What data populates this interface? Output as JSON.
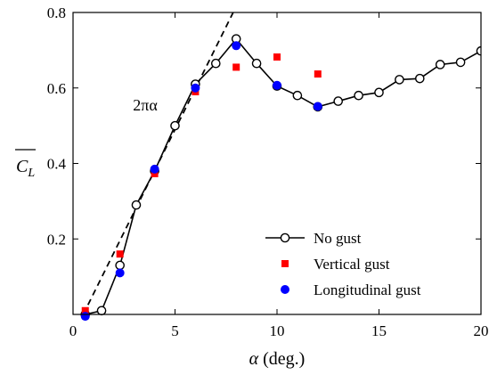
{
  "chart_data": {
    "type": "scatter",
    "xlabel": "α (deg.)",
    "ylabel": "C_L",
    "xlim": [
      0,
      20
    ],
    "ylim": [
      0,
      0.8
    ],
    "xticks": [
      0,
      5,
      10,
      15,
      20
    ],
    "yticks": [
      0.2,
      0.4,
      0.6,
      0.8
    ],
    "xtick_labels": [
      "0",
      "5",
      "10",
      "15",
      "20"
    ],
    "ytick_labels": [
      "0.2",
      "0.4",
      "0.6",
      "0.8"
    ],
    "grid": false,
    "legend_position": "lower-right",
    "annotation": {
      "text": "2πα",
      "x": 3.9,
      "y": 0.555
    },
    "series": [
      {
        "name": "No gust",
        "style": "line-open-circle",
        "color": "#000000",
        "points": [
          [
            0.6,
            0.0
          ],
          [
            1.4,
            0.01
          ],
          [
            2.3,
            0.13
          ],
          [
            3.1,
            0.29
          ],
          [
            4.0,
            0.38
          ],
          [
            5.0,
            0.5
          ],
          [
            6.0,
            0.61
          ],
          [
            7.0,
            0.665
          ],
          [
            8.0,
            0.73
          ],
          [
            9.0,
            0.665
          ],
          [
            10.0,
            0.605
          ],
          [
            11.0,
            0.58
          ],
          [
            12.0,
            0.55
          ],
          [
            13.0,
            0.565
          ],
          [
            14.0,
            0.58
          ],
          [
            15.0,
            0.588
          ],
          [
            16.0,
            0.622
          ],
          [
            17.0,
            0.625
          ],
          [
            18.0,
            0.662
          ],
          [
            19.0,
            0.668
          ],
          [
            20.0,
            0.698
          ]
        ]
      },
      {
        "name": "Vertical gust",
        "style": "filled-square",
        "color": "#ff0000",
        "points": [
          [
            0.6,
            0.01
          ],
          [
            2.3,
            0.16
          ],
          [
            4.0,
            0.373
          ],
          [
            6.0,
            0.59
          ],
          [
            8.0,
            0.655
          ],
          [
            10.0,
            0.682
          ],
          [
            12.0,
            0.637
          ]
        ]
      },
      {
        "name": "Longitudinal gust",
        "style": "filled-circle",
        "color": "#0000ff",
        "points": [
          [
            0.6,
            -0.005
          ],
          [
            2.3,
            0.11
          ],
          [
            4.0,
            0.385
          ],
          [
            6.0,
            0.6
          ],
          [
            8.0,
            0.712
          ],
          [
            10.0,
            0.607
          ],
          [
            12.0,
            0.551
          ]
        ]
      },
      {
        "style": "dashed-line",
        "color": "#000000",
        "points": [
          [
            0.5,
            0.0
          ],
          [
            7.85,
            0.8
          ]
        ]
      }
    ]
  }
}
